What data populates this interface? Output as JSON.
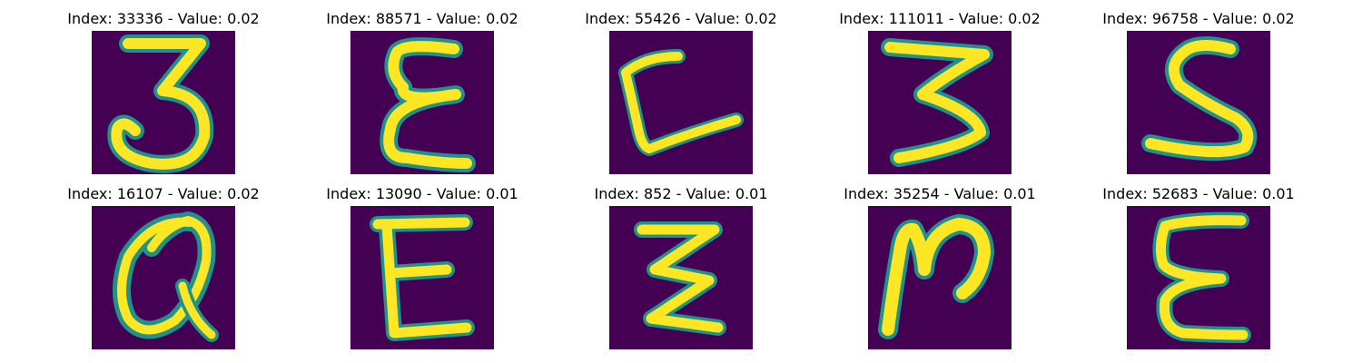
{
  "figure": {
    "background": "#ffffff",
    "colormap": {
      "low": "#440154",
      "mid": "#21918c",
      "high": "#fde725"
    },
    "panels": [
      {
        "title": "Index: 33336 - Value: 0.02",
        "index": 33336,
        "value": 0.02,
        "glyph": "3"
      },
      {
        "title": "Index: 88571 - Value: 0.02",
        "index": 88571,
        "value": 0.02,
        "glyph": "epsilon"
      },
      {
        "title": "Index: 55426 - Value: 0.02",
        "index": 55426,
        "value": 0.02,
        "glyph": "L"
      },
      {
        "title": "Index: 111011 - Value: 0.02",
        "index": 111011,
        "value": 0.02,
        "glyph": "3"
      },
      {
        "title": "Index: 96758 - Value: 0.02",
        "index": 96758,
        "value": 0.02,
        "glyph": "S"
      },
      {
        "title": "Index: 16107 - Value: 0.02",
        "index": 16107,
        "value": 0.02,
        "glyph": "Q"
      },
      {
        "title": "Index: 13090 - Value: 0.01",
        "index": 13090,
        "value": 0.01,
        "glyph": "E"
      },
      {
        "title": "Index: 852 - Value: 0.01",
        "index": 852,
        "value": 0.01,
        "glyph": "Z"
      },
      {
        "title": "Index: 35254 - Value: 0.01",
        "index": 35254,
        "value": 0.01,
        "glyph": "N"
      },
      {
        "title": "Index: 52683 - Value: 0.01",
        "index": 52683,
        "value": 0.01,
        "glyph": "E"
      }
    ]
  }
}
